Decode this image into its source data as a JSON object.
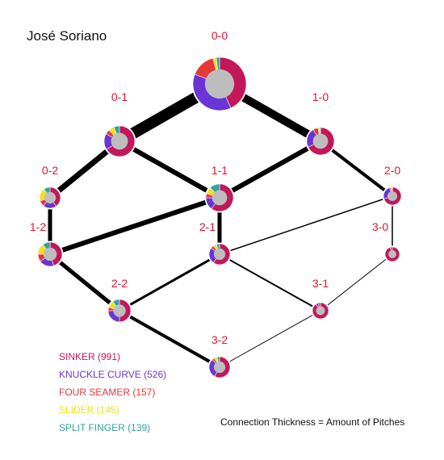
{
  "chart_data": {
    "type": "network",
    "title": "José Soriano",
    "note": "Connection Thickness = Amount of Pitches",
    "legend": [
      {
        "label": "SINKER (991)",
        "pitch": "SINKER",
        "count": 991,
        "color": "#c2185b"
      },
      {
        "label": "KNUCKLE CURVE (526)",
        "pitch": "KNUCKLE CURVE",
        "count": 526,
        "color": "#6a35d4"
      },
      {
        "label": "FOUR SEAMER (157)",
        "pitch": "FOUR SEAMER",
        "count": 157,
        "color": "#e53935"
      },
      {
        "label": "SLIDER (145)",
        "pitch": "SLIDER",
        "count": 145,
        "color": "#f2e01a"
      },
      {
        "label": "SPLIT FINGER (139)",
        "pitch": "SPLIT FINGER",
        "count": 139,
        "color": "#33a3a3"
      }
    ],
    "nodes": [
      {
        "id": "0-0",
        "label": "0-0",
        "mix": [
          0.43,
          0.38,
          0.15,
          0.02,
          0.02
        ]
      },
      {
        "id": "0-1",
        "label": "0-1",
        "mix": [
          0.66,
          0.17,
          0.05,
          0.06,
          0.06
        ]
      },
      {
        "id": "1-0",
        "label": "1-0",
        "mix": [
          0.68,
          0.23,
          0.06,
          0.02,
          0.01
        ]
      },
      {
        "id": "0-2",
        "label": "0-2",
        "mix": [
          0.4,
          0.21,
          0.09,
          0.2,
          0.1
        ]
      },
      {
        "id": "1-1",
        "label": "1-1",
        "mix": [
          0.6,
          0.15,
          0.05,
          0.08,
          0.12
        ]
      },
      {
        "id": "2-0",
        "label": "2-0",
        "mix": [
          0.7,
          0.25,
          0.03,
          0.01,
          0.01
        ]
      },
      {
        "id": "1-2",
        "label": "1-2",
        "mix": [
          0.45,
          0.2,
          0.1,
          0.15,
          0.1
        ]
      },
      {
        "id": "2-1",
        "label": "2-1",
        "mix": [
          0.6,
          0.25,
          0.05,
          0.05,
          0.05
        ]
      },
      {
        "id": "3-0",
        "label": "3-0",
        "mix": [
          0.95,
          0.0,
          0.05,
          0.0,
          0.0
        ]
      },
      {
        "id": "2-2",
        "label": "2-2",
        "mix": [
          0.5,
          0.25,
          0.05,
          0.1,
          0.1
        ]
      },
      {
        "id": "3-1",
        "label": "3-1",
        "mix": [
          0.9,
          0.05,
          0.05,
          0.0,
          0.0
        ]
      },
      {
        "id": "3-2",
        "label": "3-2",
        "mix": [
          0.58,
          0.3,
          0.04,
          0.04,
          0.04
        ]
      }
    ],
    "edges": [
      {
        "from": "0-0",
        "to": "0-1",
        "pitches": 14
      },
      {
        "from": "0-0",
        "to": "1-0",
        "pitches": 10
      },
      {
        "from": "0-1",
        "to": "0-2",
        "pitches": 7
      },
      {
        "from": "0-1",
        "to": "1-1",
        "pitches": 6
      },
      {
        "from": "1-0",
        "to": "1-1",
        "pitches": 6
      },
      {
        "from": "1-0",
        "to": "2-0",
        "pitches": 4
      },
      {
        "from": "0-2",
        "to": "1-2",
        "pitches": 5
      },
      {
        "from": "1-1",
        "to": "1-2",
        "pitches": 6
      },
      {
        "from": "1-1",
        "to": "2-1",
        "pitches": 5
      },
      {
        "from": "2-0",
        "to": "2-1",
        "pitches": 1.5
      },
      {
        "from": "2-0",
        "to": "3-0",
        "pitches": 1.5
      },
      {
        "from": "1-2",
        "to": "2-2",
        "pitches": 5
      },
      {
        "from": "2-1",
        "to": "2-2",
        "pitches": 3
      },
      {
        "from": "2-1",
        "to": "3-1",
        "pitches": 2
      },
      {
        "from": "3-0",
        "to": "3-1",
        "pitches": 1
      },
      {
        "from": "2-2",
        "to": "3-2",
        "pitches": 4
      },
      {
        "from": "3-1",
        "to": "3-2",
        "pitches": 1
      }
    ]
  }
}
